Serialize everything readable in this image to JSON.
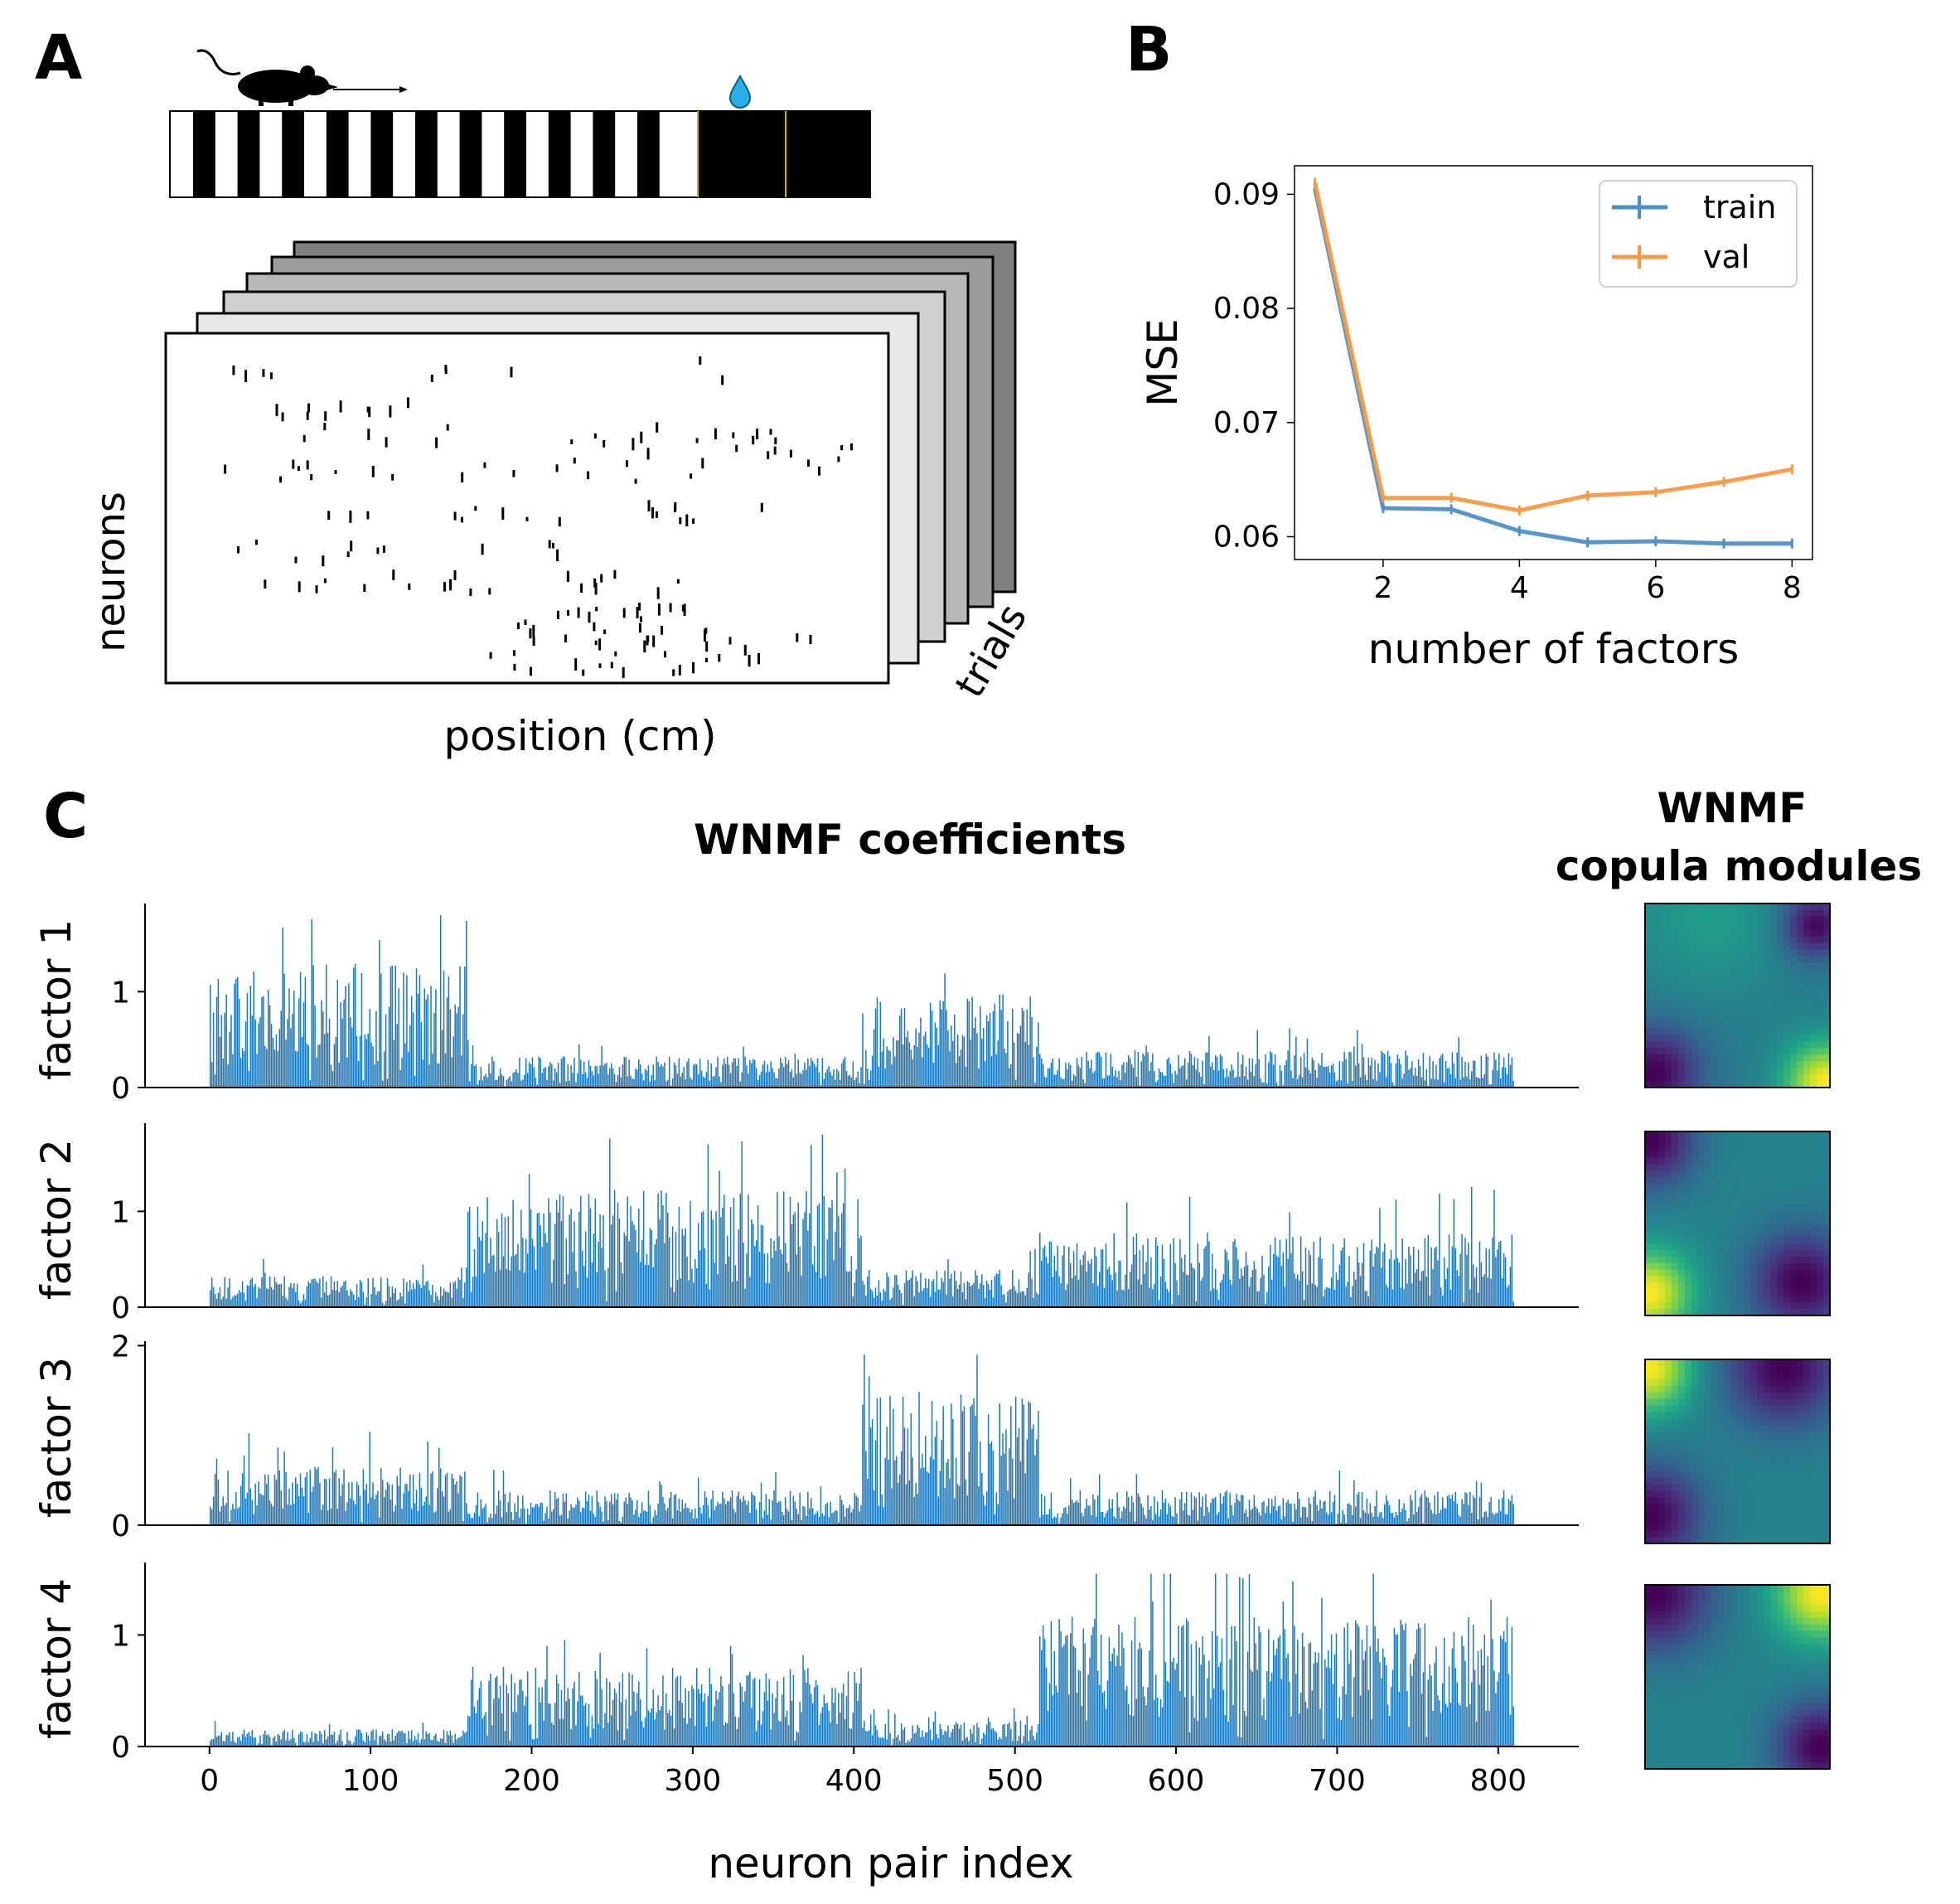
{
  "panels": {
    "a": {
      "letter": "A",
      "ylabel": "neurons",
      "xlabel": "position (cm)",
      "depth_label": "trials"
    },
    "b": {
      "letter": "B"
    },
    "c": {
      "letter": "C",
      "title": "WNMF coefficients",
      "copula_title_line1": "WNMF",
      "copula_title_line2": "copula modules"
    }
  },
  "colors": {
    "train": "#4f8fc6",
    "val": "#f59a46",
    "bar": "#1f77b4",
    "water_drop": "#29aee6",
    "reward_line": "#c8b400"
  },
  "icons": [
    "mouse-icon",
    "water-drop-icon",
    "arrow-icon"
  ],
  "chart_data": [
    {
      "type": "line",
      "panel": "B",
      "xlabel": "number of factors",
      "ylabel": "MSE",
      "x": [
        1,
        2,
        3,
        4,
        5,
        6,
        7,
        8
      ],
      "xticks": [
        2,
        4,
        6,
        8
      ],
      "yticks": [
        0.06,
        0.07,
        0.08,
        0.09
      ],
      "xlim": [
        0.7,
        8.3
      ],
      "ylim": [
        0.058,
        0.0925
      ],
      "legend_position": "upper right",
      "series": [
        {
          "name": "train",
          "values": [
            0.0905,
            0.0625,
            0.0624,
            0.0605,
            0.0595,
            0.0596,
            0.0594,
            0.0594
          ]
        },
        {
          "name": "val",
          "values": [
            0.091,
            0.0634,
            0.0634,
            0.0623,
            0.0636,
            0.0639,
            0.0648,
            0.0659
          ]
        }
      ]
    },
    {
      "type": "bar",
      "panel": "C",
      "xlabel": "neuron pair index",
      "x_range": [
        0,
        810
      ],
      "xticks": [
        0,
        100,
        200,
        300,
        400,
        500,
        600,
        700,
        800
      ],
      "xlim": [
        -40,
        850
      ],
      "note": "each factor has 810 bars; segment_levels give approximate typical coefficient level per neuron-pair range",
      "segments": [
        0,
        160,
        405,
        515,
        810
      ],
      "factors": [
        {
          "name": "factor 1",
          "yticks": [
            0,
            1
          ],
          "ylim": [
            0,
            1.92
          ],
          "segment_levels": [
            1.0,
            0.25,
            0.75,
            0.3
          ],
          "peak": 1.82
        },
        {
          "name": "factor 2",
          "yticks": [
            0,
            1
          ],
          "ylim": [
            0,
            1.92
          ],
          "segment_levels": [
            0.25,
            0.95,
            0.3,
            0.6
          ],
          "peak": 1.8
        },
        {
          "name": "factor 3",
          "yticks": [
            0,
            2
          ],
          "ylim": [
            0,
            2.05
          ],
          "segment_levels": [
            0.5,
            0.3,
            1.15,
            0.3
          ],
          "peak": 1.9
        },
        {
          "name": "factor 4",
          "yticks": [
            0,
            1
          ],
          "ylim": [
            0,
            1.65
          ],
          "segment_levels": [
            0.12,
            0.55,
            0.18,
            0.9
          ],
          "peak": 1.55
        }
      ]
    },
    {
      "type": "heatmap",
      "panel": "C",
      "title": "WNMF copula modules",
      "colormap": "viridis",
      "modules": [
        {
          "factor": "factor 1",
          "blobs": [
            [
              0.98,
              0.98,
              1.0,
              0.16
            ],
            [
              0.35,
              0.05,
              0.55,
              0.3
            ]
          ],
          "base": 0.42,
          "dark": [
            [
              0.92,
              0.12,
              0.16
            ],
            [
              0.05,
              0.92,
              0.22
            ]
          ]
        },
        {
          "factor": "factor 2",
          "blobs": [
            [
              0.02,
              0.88,
              1.0,
              0.16
            ]
          ],
          "base": 0.45,
          "dark": [
            [
              0.03,
              0.05,
              0.22
            ],
            [
              0.85,
              0.82,
              0.25
            ]
          ]
        },
        {
          "factor": "factor 3",
          "blobs": [
            [
              0.02,
              0.05,
              1.0,
              0.16
            ]
          ],
          "base": 0.45,
          "dark": [
            [
              0.75,
              0.05,
              0.28
            ],
            [
              0.03,
              0.85,
              0.25
            ]
          ]
        },
        {
          "factor": "factor 4",
          "blobs": [
            [
              0.95,
              0.05,
              1.0,
              0.17
            ]
          ],
          "base": 0.45,
          "dark": [
            [
              0.05,
              0.05,
              0.28
            ],
            [
              0.95,
              0.88,
              0.22
            ]
          ]
        }
      ]
    }
  ]
}
